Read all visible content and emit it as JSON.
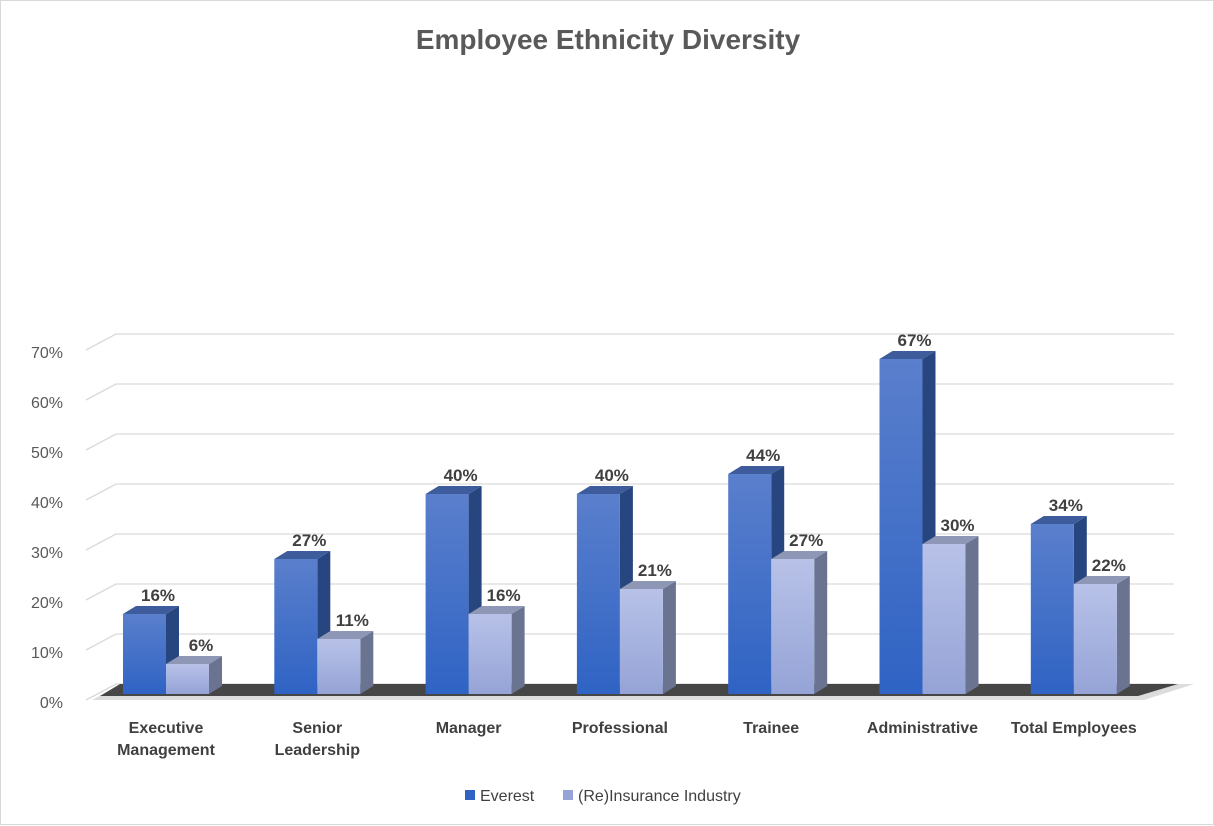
{
  "chart_data": {
    "type": "bar",
    "title": "Employee Ethnicity Diversity",
    "categories": [
      [
        "Executive",
        "Management"
      ],
      [
        "Senior",
        "Leadership"
      ],
      [
        "Manager"
      ],
      [
        "Professional"
      ],
      [
        "Trainee"
      ],
      [
        "Administrative"
      ],
      [
        "Total Employees"
      ]
    ],
    "series": [
      {
        "name": "Everest",
        "values": [
          16,
          27,
          40,
          40,
          44,
          67,
          34
        ],
        "labels": [
          "16%",
          "27%",
          "40%",
          "40%",
          "44%",
          "67%",
          "34%"
        ],
        "color_front_top": "#5a7fcc",
        "color_front_bottom": "#2f63c4",
        "color_side": "#27457e",
        "color_top": "#3e5c9c"
      },
      {
        "name": "(Re)Insurance Industry",
        "values": [
          6,
          11,
          16,
          21,
          27,
          30,
          22
        ],
        "labels": [
          "6%",
          "11%",
          "16%",
          "21%",
          "27%",
          "30%",
          "22%"
        ],
        "color_front_top": "#b8c2e8",
        "color_front_bottom": "#95a3d6",
        "color_side": "#6a7390",
        "color_top": "#8e98b6"
      }
    ],
    "ylim": [
      0,
      70
    ],
    "yticks": [
      0,
      10,
      20,
      30,
      40,
      50,
      60,
      70
    ],
    "ytick_labels": [
      "0%",
      "10%",
      "20%",
      "30%",
      "40%",
      "50%",
      "60%",
      "70%"
    ],
    "grid": true,
    "legend": "bottom",
    "xlabel": "",
    "ylabel": ""
  }
}
